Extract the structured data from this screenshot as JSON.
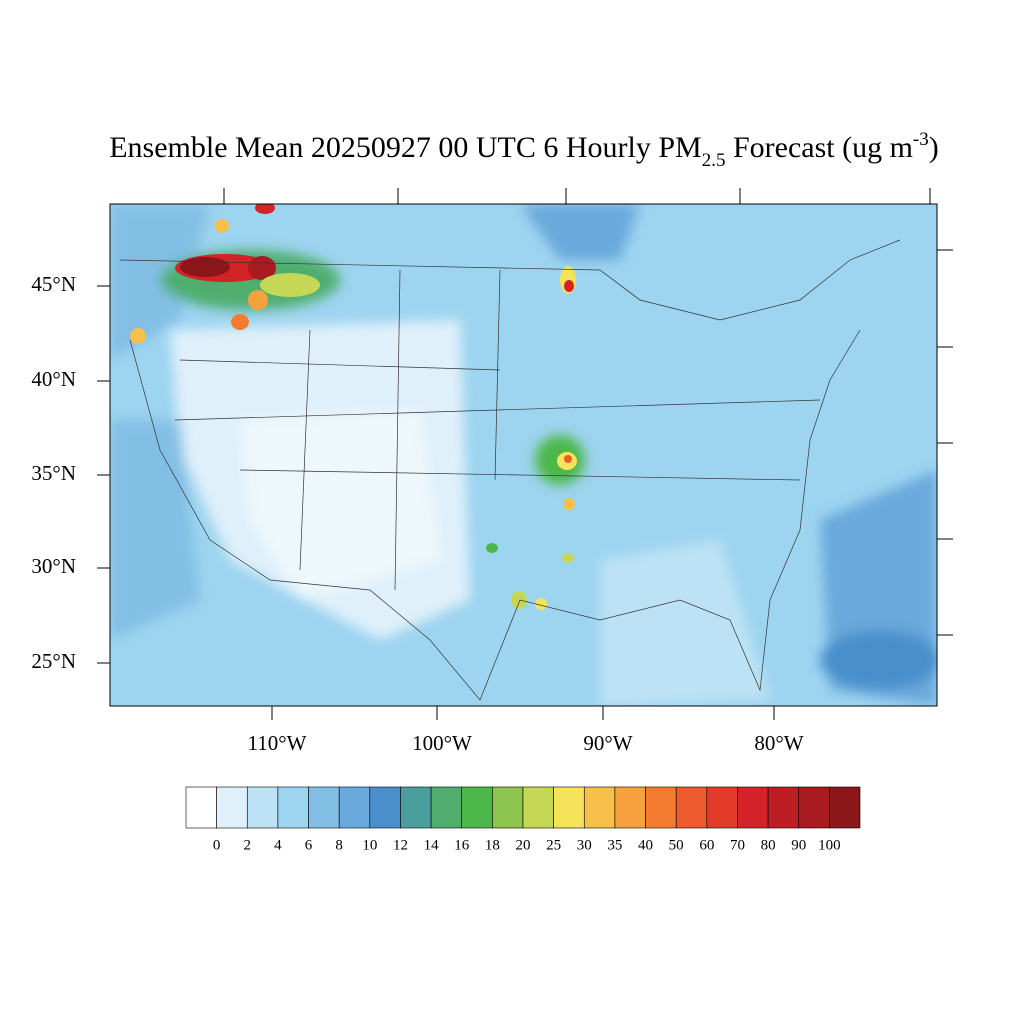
{
  "title": {
    "main": "Ensemble Mean 20250927 00 UTC 6 Hourly PM",
    "subscript": "2.5",
    "middle": " Forecast (ug m",
    "superscript": "-3",
    "end": ")"
  },
  "lat_labels": [
    "45°N",
    "40°N",
    "35°N",
    "30°N",
    "25°N"
  ],
  "lon_labels": [
    "110°W",
    "100°W",
    "90°W",
    "80°W"
  ],
  "colorbar": {
    "levels": [
      0,
      2,
      4,
      6,
      8,
      10,
      12,
      14,
      16,
      18,
      20,
      25,
      30,
      35,
      40,
      50,
      60,
      70,
      80,
      90,
      100
    ],
    "colors": [
      "#ffffff",
      "#dff0fa",
      "#bde2f5",
      "#9dd4f0",
      "#83bfe5",
      "#6aa9dc",
      "#4a8fcc",
      "#4a9e9e",
      "#4fae6e",
      "#4cb84a",
      "#8cc44e",
      "#c5d855",
      "#f5e35a",
      "#f7c04a",
      "#f7a03e",
      "#f47c30",
      "#ec5a2d",
      "#e33b2a",
      "#d42328",
      "#bd1e24",
      "#a81b20",
      "#8c161a"
    ]
  }
}
